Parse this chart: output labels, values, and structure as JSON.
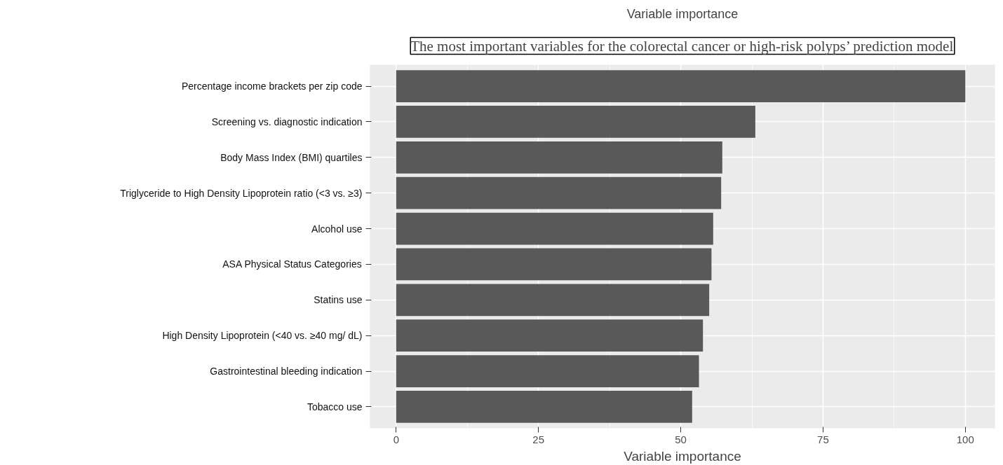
{
  "chart_data": {
    "type": "bar",
    "orientation": "horizontal",
    "title": "Variable importance",
    "subtitle": "The most important variables for the colorectal cancer or high-risk polyps’ prediction model",
    "xlabel": "Variable importance",
    "categories": [
      "Percentage income brackets per zip code",
      "Screening vs. diagnostic indication",
      "Body Mass Index (BMI) quartiles",
      "Triglyceride to High Density Lipoprotein ratio (<3 vs. ≥3)",
      "Alcohol use",
      "ASA Physical Status Categories",
      "Statins use",
      "High Density Lipoprotein (<40 vs. ≥40 mg/ dL)",
      "Gastrointestinal bleeding indication",
      "Tobacco use"
    ],
    "values": [
      100,
      63.1,
      57.3,
      57.1,
      55.7,
      55.4,
      55.0,
      53.9,
      53.2,
      52.0
    ],
    "color": "#595959",
    "xlim": [
      -4.6,
      105.2
    ],
    "xticks": [
      0,
      25,
      50,
      75,
      100
    ],
    "grid": true
  }
}
